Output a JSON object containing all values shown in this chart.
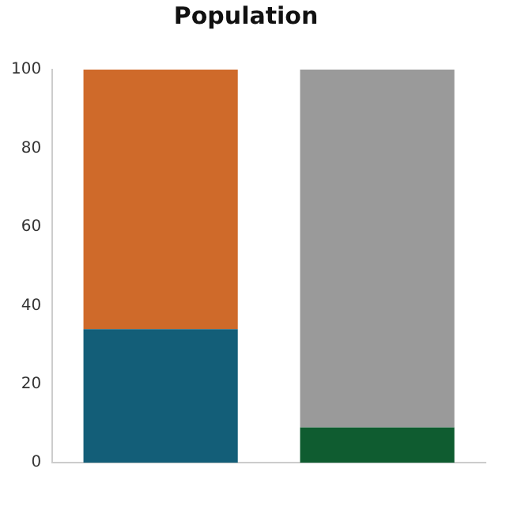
{
  "chart_data": {
    "type": "bar",
    "title": "Population",
    "categories": [
      null,
      null
    ],
    "stacked": true,
    "series": [
      {
        "colors": [
          "#135e78",
          "#0f5c30"
        ],
        "values": [
          34,
          9
        ]
      },
      {
        "colors": [
          "#cf6a2a",
          "#9a9a9a"
        ],
        "values": [
          66,
          91
        ]
      }
    ],
    "ylim": [
      0,
      100
    ],
    "yticks": [
      0,
      20,
      40,
      60,
      80,
      100
    ],
    "grid": false,
    "legend": false
  }
}
